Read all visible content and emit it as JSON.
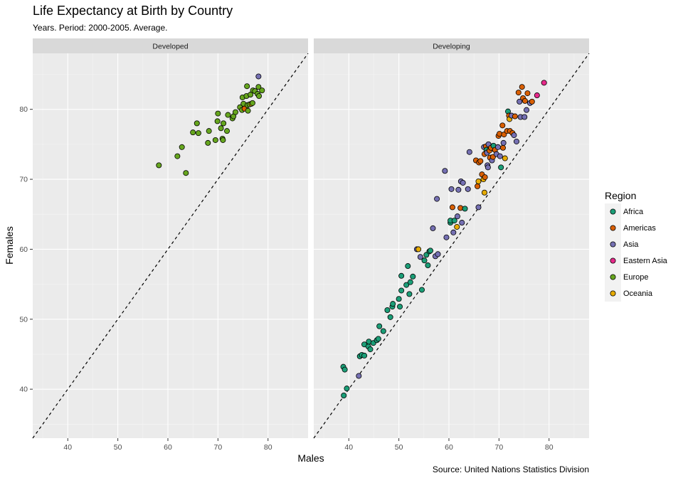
{
  "title": "Life Expectancy at Birth by Country",
  "subtitle": "Years. Period: 2000-2005. Average.",
  "caption": "Source: United Nations Statistics Division",
  "chart_data": {
    "type": "scatter",
    "xlabel": "Males",
    "ylabel": "Females",
    "xlim": [
      33,
      88
    ],
    "ylim": [
      33,
      88
    ],
    "x_ticks": [
      40,
      50,
      60,
      70,
      80
    ],
    "y_ticks": [
      40,
      50,
      60,
      70,
      80
    ],
    "reference_line": "y = x (dashed)",
    "grid": true,
    "legend_position": "right",
    "legend_title": "Region",
    "region_colors": {
      "Africa": "#1b9e77",
      "Americas": "#d95f02",
      "Asia": "#7570b3",
      "Eastern Asia": "#e7298a",
      "Europe": "#66a61e",
      "Oceania": "#e6ab02"
    },
    "panels": [
      {
        "name": "Developed",
        "points": [
          {
            "x": 58.2,
            "y": 72.0,
            "region": "Europe"
          },
          {
            "x": 61.9,
            "y": 73.3,
            "region": "Europe"
          },
          {
            "x": 62.8,
            "y": 74.6,
            "region": "Europe"
          },
          {
            "x": 63.6,
            "y": 70.9,
            "region": "Europe"
          },
          {
            "x": 65.0,
            "y": 76.7,
            "region": "Europe"
          },
          {
            "x": 65.8,
            "y": 78.0,
            "region": "Europe"
          },
          {
            "x": 66.1,
            "y": 76.6,
            "region": "Europe"
          },
          {
            "x": 68.0,
            "y": 75.2,
            "region": "Europe"
          },
          {
            "x": 68.2,
            "y": 76.9,
            "region": "Europe"
          },
          {
            "x": 69.5,
            "y": 75.6,
            "region": "Europe"
          },
          {
            "x": 69.9,
            "y": 78.3,
            "region": "Europe"
          },
          {
            "x": 70.0,
            "y": 79.4,
            "region": "Europe"
          },
          {
            "x": 70.6,
            "y": 77.3,
            "region": "Europe"
          },
          {
            "x": 70.9,
            "y": 75.8,
            "region": "Europe"
          },
          {
            "x": 71.0,
            "y": 75.6,
            "region": "Europe"
          },
          {
            "x": 71.1,
            "y": 78.0,
            "region": "Europe"
          },
          {
            "x": 71.8,
            "y": 76.9,
            "region": "Europe"
          },
          {
            "x": 72.0,
            "y": 79.2,
            "region": "Europe"
          },
          {
            "x": 72.9,
            "y": 78.7,
            "region": "Europe"
          },
          {
            "x": 73.1,
            "y": 79.0,
            "region": "Europe"
          },
          {
            "x": 73.5,
            "y": 79.6,
            "region": "Europe"
          },
          {
            "x": 74.4,
            "y": 80.3,
            "region": "Europe"
          },
          {
            "x": 74.8,
            "y": 79.9,
            "region": "Europe"
          },
          {
            "x": 74.9,
            "y": 81.7,
            "region": "Europe"
          },
          {
            "x": 75.1,
            "y": 80.8,
            "region": "Europe"
          },
          {
            "x": 75.3,
            "y": 80.1,
            "region": "Americas"
          },
          {
            "x": 75.7,
            "y": 81.9,
            "region": "Europe"
          },
          {
            "x": 75.8,
            "y": 83.3,
            "region": "Europe"
          },
          {
            "x": 75.9,
            "y": 80.6,
            "region": "Europe"
          },
          {
            "x": 76.0,
            "y": 79.8,
            "region": "Europe"
          },
          {
            "x": 76.3,
            "y": 80.7,
            "region": "Europe"
          },
          {
            "x": 76.5,
            "y": 82.1,
            "region": "Europe"
          },
          {
            "x": 76.7,
            "y": 80.8,
            "region": "Oceania"
          },
          {
            "x": 76.9,
            "y": 80.9,
            "region": "Europe"
          },
          {
            "x": 77.0,
            "y": 82.7,
            "region": "Europe"
          },
          {
            "x": 77.4,
            "y": 82.6,
            "region": "Europe"
          },
          {
            "x": 77.9,
            "y": 82.2,
            "region": "Europe"
          },
          {
            "x": 78.1,
            "y": 84.7,
            "region": "Asia"
          },
          {
            "x": 78.1,
            "y": 83.2,
            "region": "Europe"
          },
          {
            "x": 78.2,
            "y": 81.9,
            "region": "Europe"
          },
          {
            "x": 78.8,
            "y": 82.7,
            "region": "Europe"
          }
        ]
      },
      {
        "name": "Developing",
        "points": [
          {
            "x": 38.9,
            "y": 43.2,
            "region": "Africa"
          },
          {
            "x": 39.2,
            "y": 42.8,
            "region": "Africa"
          },
          {
            "x": 39.0,
            "y": 39.1,
            "region": "Africa"
          },
          {
            "x": 39.6,
            "y": 40.1,
            "region": "Africa"
          },
          {
            "x": 42.0,
            "y": 41.9,
            "region": "Asia"
          },
          {
            "x": 42.2,
            "y": 44.7,
            "region": "Africa"
          },
          {
            "x": 42.6,
            "y": 44.9,
            "region": "Africa"
          },
          {
            "x": 43.1,
            "y": 44.8,
            "region": "Africa"
          },
          {
            "x": 43.1,
            "y": 46.4,
            "region": "Africa"
          },
          {
            "x": 43.9,
            "y": 46.1,
            "region": "Africa"
          },
          {
            "x": 44.0,
            "y": 46.8,
            "region": "Africa"
          },
          {
            "x": 44.3,
            "y": 45.7,
            "region": "Africa"
          },
          {
            "x": 44.9,
            "y": 46.6,
            "region": "Africa"
          },
          {
            "x": 45.6,
            "y": 47.0,
            "region": "Africa"
          },
          {
            "x": 45.9,
            "y": 47.2,
            "region": "Africa"
          },
          {
            "x": 46.1,
            "y": 49.0,
            "region": "Africa"
          },
          {
            "x": 46.9,
            "y": 48.3,
            "region": "Africa"
          },
          {
            "x": 47.7,
            "y": 51.3,
            "region": "Africa"
          },
          {
            "x": 48.7,
            "y": 51.8,
            "region": "Africa"
          },
          {
            "x": 48.8,
            "y": 52.2,
            "region": "Africa"
          },
          {
            "x": 48.3,
            "y": 50.3,
            "region": "Africa"
          },
          {
            "x": 50.0,
            "y": 52.9,
            "region": "Africa"
          },
          {
            "x": 50.2,
            "y": 51.8,
            "region": "Africa"
          },
          {
            "x": 50.5,
            "y": 54.1,
            "region": "Africa"
          },
          {
            "x": 50.5,
            "y": 56.2,
            "region": "Africa"
          },
          {
            "x": 51.5,
            "y": 54.9,
            "region": "Africa"
          },
          {
            "x": 51.8,
            "y": 57.6,
            "region": "Africa"
          },
          {
            "x": 52.1,
            "y": 53.6,
            "region": "Africa"
          },
          {
            "x": 52.3,
            "y": 55.3,
            "region": "Africa"
          },
          {
            "x": 52.8,
            "y": 56.1,
            "region": "Africa"
          },
          {
            "x": 53.6,
            "y": 60.0,
            "region": "Asia"
          },
          {
            "x": 53.9,
            "y": 60.0,
            "region": "Oceania"
          },
          {
            "x": 54.3,
            "y": 58.9,
            "region": "Asia"
          },
          {
            "x": 54.6,
            "y": 54.2,
            "region": "Africa"
          },
          {
            "x": 55.1,
            "y": 58.4,
            "region": "Africa"
          },
          {
            "x": 55.5,
            "y": 59.2,
            "region": "Africa"
          },
          {
            "x": 55.8,
            "y": 57.7,
            "region": "Africa"
          },
          {
            "x": 56.1,
            "y": 59.7,
            "region": "Africa"
          },
          {
            "x": 56.3,
            "y": 59.8,
            "region": "Africa"
          },
          {
            "x": 56.8,
            "y": 63.0,
            "region": "Asia"
          },
          {
            "x": 57.3,
            "y": 59.0,
            "region": "Asia"
          },
          {
            "x": 57.6,
            "y": 67.2,
            "region": "Asia"
          },
          {
            "x": 57.8,
            "y": 59.3,
            "region": "Asia"
          },
          {
            "x": 59.2,
            "y": 71.2,
            "region": "Asia"
          },
          {
            "x": 59.5,
            "y": 61.7,
            "region": "Asia"
          },
          {
            "x": 60.3,
            "y": 63.8,
            "region": "Africa"
          },
          {
            "x": 60.3,
            "y": 64.1,
            "region": "Africa"
          },
          {
            "x": 60.5,
            "y": 68.6,
            "region": "Asia"
          },
          {
            "x": 60.7,
            "y": 66.0,
            "region": "Americas"
          },
          {
            "x": 60.9,
            "y": 62.4,
            "region": "Asia"
          },
          {
            "x": 61.1,
            "y": 64.1,
            "region": "Africa"
          },
          {
            "x": 61.6,
            "y": 63.2,
            "region": "Oceania"
          },
          {
            "x": 61.7,
            "y": 64.7,
            "region": "Asia"
          },
          {
            "x": 61.9,
            "y": 68.5,
            "region": "Asia"
          },
          {
            "x": 62.3,
            "y": 65.9,
            "region": "Americas"
          },
          {
            "x": 62.4,
            "y": 69.7,
            "region": "Asia"
          },
          {
            "x": 62.6,
            "y": 63.8,
            "region": "Asia"
          },
          {
            "x": 62.8,
            "y": 69.5,
            "region": "Asia"
          },
          {
            "x": 63.2,
            "y": 65.8,
            "region": "Africa"
          },
          {
            "x": 63.8,
            "y": 68.6,
            "region": "Asia"
          },
          {
            "x": 64.1,
            "y": 73.9,
            "region": "Asia"
          },
          {
            "x": 65.4,
            "y": 72.7,
            "region": "Americas"
          },
          {
            "x": 65.7,
            "y": 69.0,
            "region": "Americas"
          },
          {
            "x": 65.9,
            "y": 66.0,
            "region": "Asia"
          },
          {
            "x": 65.9,
            "y": 69.7,
            "region": "Oceania"
          },
          {
            "x": 66.0,
            "y": 72.4,
            "region": "Americas"
          },
          {
            "x": 66.3,
            "y": 72.6,
            "region": "Americas"
          },
          {
            "x": 66.6,
            "y": 70.7,
            "region": "Americas"
          },
          {
            "x": 66.9,
            "y": 70.0,
            "region": "Oceania"
          },
          {
            "x": 67.0,
            "y": 74.6,
            "region": "Asia"
          },
          {
            "x": 67.1,
            "y": 68.1,
            "region": "Oceania"
          },
          {
            "x": 67.1,
            "y": 73.6,
            "region": "Americas"
          },
          {
            "x": 67.2,
            "y": 70.3,
            "region": "Americas"
          },
          {
            "x": 67.4,
            "y": 74.7,
            "region": "Americas"
          },
          {
            "x": 67.5,
            "y": 74.2,
            "region": "Africa"
          },
          {
            "x": 67.6,
            "y": 73.8,
            "region": "Asia"
          },
          {
            "x": 67.7,
            "y": 72.0,
            "region": "Asia"
          },
          {
            "x": 67.8,
            "y": 71.7,
            "region": "Asia"
          },
          {
            "x": 67.9,
            "y": 75.0,
            "region": "Asia"
          },
          {
            "x": 68.1,
            "y": 74.1,
            "region": "Americas"
          },
          {
            "x": 68.2,
            "y": 73.1,
            "region": "Americas"
          },
          {
            "x": 68.4,
            "y": 74.5,
            "region": "Americas"
          },
          {
            "x": 68.6,
            "y": 72.7,
            "region": "Asia"
          },
          {
            "x": 68.8,
            "y": 73.2,
            "region": "Americas"
          },
          {
            "x": 68.9,
            "y": 74.8,
            "region": "Africa"
          },
          {
            "x": 69.2,
            "y": 74.2,
            "region": "Americas"
          },
          {
            "x": 69.5,
            "y": 73.6,
            "region": "Asia"
          },
          {
            "x": 69.8,
            "y": 74.6,
            "region": "Asia"
          },
          {
            "x": 69.9,
            "y": 76.2,
            "region": "Americas"
          },
          {
            "x": 70.1,
            "y": 76.5,
            "region": "Americas"
          },
          {
            "x": 70.2,
            "y": 73.3,
            "region": "Asia"
          },
          {
            "x": 70.4,
            "y": 71.7,
            "region": "Africa"
          },
          {
            "x": 70.7,
            "y": 77.7,
            "region": "Americas"
          },
          {
            "x": 70.8,
            "y": 74.5,
            "region": "Americas"
          },
          {
            "x": 70.9,
            "y": 75.2,
            "region": "Asia"
          },
          {
            "x": 71.0,
            "y": 76.4,
            "region": "Americas"
          },
          {
            "x": 71.2,
            "y": 73.0,
            "region": "Oceania"
          },
          {
            "x": 71.6,
            "y": 76.9,
            "region": "Americas"
          },
          {
            "x": 71.8,
            "y": 79.7,
            "region": "Africa"
          },
          {
            "x": 72.0,
            "y": 79.1,
            "region": "Americas"
          },
          {
            "x": 72.1,
            "y": 78.6,
            "region": "Oceania"
          },
          {
            "x": 72.2,
            "y": 76.9,
            "region": "Americas"
          },
          {
            "x": 72.5,
            "y": 79.1,
            "region": "Asia"
          },
          {
            "x": 72.7,
            "y": 76.6,
            "region": "Americas"
          },
          {
            "x": 73.0,
            "y": 76.3,
            "region": "Asia"
          },
          {
            "x": 73.2,
            "y": 79.0,
            "region": "Americas"
          },
          {
            "x": 73.5,
            "y": 75.4,
            "region": "Asia"
          },
          {
            "x": 73.9,
            "y": 82.4,
            "region": "Americas"
          },
          {
            "x": 74.1,
            "y": 81.1,
            "region": "Asia"
          },
          {
            "x": 74.3,
            "y": 78.9,
            "region": "Asia"
          },
          {
            "x": 74.6,
            "y": 83.2,
            "region": "Americas"
          },
          {
            "x": 74.8,
            "y": 81.6,
            "region": "Americas"
          },
          {
            "x": 75.1,
            "y": 78.9,
            "region": "Asia"
          },
          {
            "x": 75.2,
            "y": 81.2,
            "region": "Americas"
          },
          {
            "x": 75.5,
            "y": 79.9,
            "region": "Asia"
          },
          {
            "x": 75.7,
            "y": 82.3,
            "region": "Americas"
          },
          {
            "x": 76.2,
            "y": 80.9,
            "region": "Asia"
          },
          {
            "x": 76.6,
            "y": 81.1,
            "region": "Americas"
          },
          {
            "x": 77.6,
            "y": 82.0,
            "region": "Eastern Asia"
          },
          {
            "x": 79.0,
            "y": 83.8,
            "region": "Eastern Asia"
          }
        ]
      }
    ]
  }
}
